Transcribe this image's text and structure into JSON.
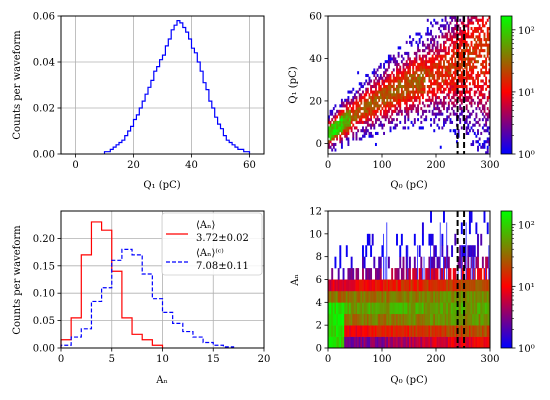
{
  "figure": {
    "background": "#ffffff"
  },
  "chart_data": [
    {
      "type": "histogram-step",
      "panel": "top-left",
      "xlabel": "Q₁ (pC)",
      "ylabel": "Counts per waveform",
      "xlim": [
        -5,
        65
      ],
      "ylim": [
        0,
        0.06
      ],
      "xticks": [
        0,
        20,
        40,
        60
      ],
      "yticks": [
        0.0,
        0.02,
        0.04,
        0.06
      ],
      "ytick_labels": [
        "0.00",
        "0.02",
        "0.04",
        "0.06"
      ],
      "grid": true,
      "bin_width": 1,
      "series": [
        {
          "color": "#0000ff",
          "style": "solid",
          "bin_start": 10,
          "values": [
            0.001,
            0.001,
            0.002,
            0.003,
            0.004,
            0.005,
            0.006,
            0.008,
            0.01,
            0.012,
            0.015,
            0.017,
            0.02,
            0.023,
            0.026,
            0.029,
            0.032,
            0.036,
            0.038,
            0.041,
            0.043,
            0.047,
            0.05,
            0.054,
            0.056,
            0.058,
            0.057,
            0.055,
            0.053,
            0.05,
            0.046,
            0.044,
            0.04,
            0.036,
            0.031,
            0.028,
            0.023,
            0.02,
            0.016,
            0.013,
            0.011,
            0.008,
            0.006,
            0.005,
            0.004,
            0.003,
            0.002,
            0.002,
            0.001,
            0.001
          ]
        }
      ]
    },
    {
      "type": "heatmap",
      "panel": "top-right",
      "xlabel": "Q₀ (pC)",
      "ylabel": "Q₁ (pC)",
      "xlim": [
        0,
        300
      ],
      "ylim": [
        -5,
        60
      ],
      "xticks": [
        0,
        100,
        200,
        300
      ],
      "yticks": [
        0,
        20,
        40,
        60
      ],
      "colorscale": "log",
      "colorbar_ticks": [
        "10⁰",
        "10¹",
        "10²"
      ],
      "colors": [
        "#0000ff",
        "#ff0000",
        "#00ff00"
      ],
      "vlines": [
        240,
        252
      ],
      "vline_style": "dashed black"
    },
    {
      "type": "histogram-step",
      "panel": "bottom-left",
      "xlabel": "Aₙ",
      "ylabel": "Counts per waveform",
      "xlim": [
        0,
        20
      ],
      "ylim": [
        0,
        0.25
      ],
      "xticks": [
        0,
        5,
        10,
        15,
        20
      ],
      "yticks": [
        0.0,
        0.05,
        0.1,
        0.15,
        0.2
      ],
      "ytick_labels": [
        "0.00",
        "0.05",
        "0.10",
        "0.15",
        "0.20"
      ],
      "grid": true,
      "bin_width": 1,
      "legend": "upper right",
      "series": [
        {
          "legend_math": "⟨Aₙ⟩",
          "legend_value": "3.72±0.02",
          "color": "#ff0000",
          "style": "solid",
          "bin_start": 0,
          "values": [
            0.015,
            0.055,
            0.17,
            0.23,
            0.215,
            0.14,
            0.055,
            0.025,
            0.015,
            0.005
          ]
        },
        {
          "legend_math": "⟨Aₙ⟩⁽ᶜ⁾",
          "legend_value": "7.08±0.11",
          "color": "#0000ff",
          "style": "dashed",
          "bin_start": 0,
          "values": [
            0.005,
            0.02,
            0.035,
            0.085,
            0.11,
            0.16,
            0.18,
            0.17,
            0.135,
            0.09,
            0.065,
            0.045,
            0.03,
            0.02,
            0.01,
            0.005,
            0.002
          ]
        }
      ]
    },
    {
      "type": "heatmap",
      "panel": "bottom-right",
      "xlabel": "Q₀ (pC)",
      "ylabel": "Aₙ",
      "xlim": [
        0,
        300
      ],
      "ylim": [
        0,
        12
      ],
      "xticks": [
        0,
        100,
        200,
        300
      ],
      "yticks": [
        0,
        2,
        4,
        6,
        8,
        10,
        12
      ],
      "colorscale": "log",
      "colorbar_ticks": [
        "10⁰",
        "10¹",
        "10²"
      ],
      "colors": [
        "#0000ff",
        "#ff0000",
        "#00ff00"
      ],
      "vlines": [
        240,
        252
      ],
      "vline_style": "dashed black"
    }
  ]
}
